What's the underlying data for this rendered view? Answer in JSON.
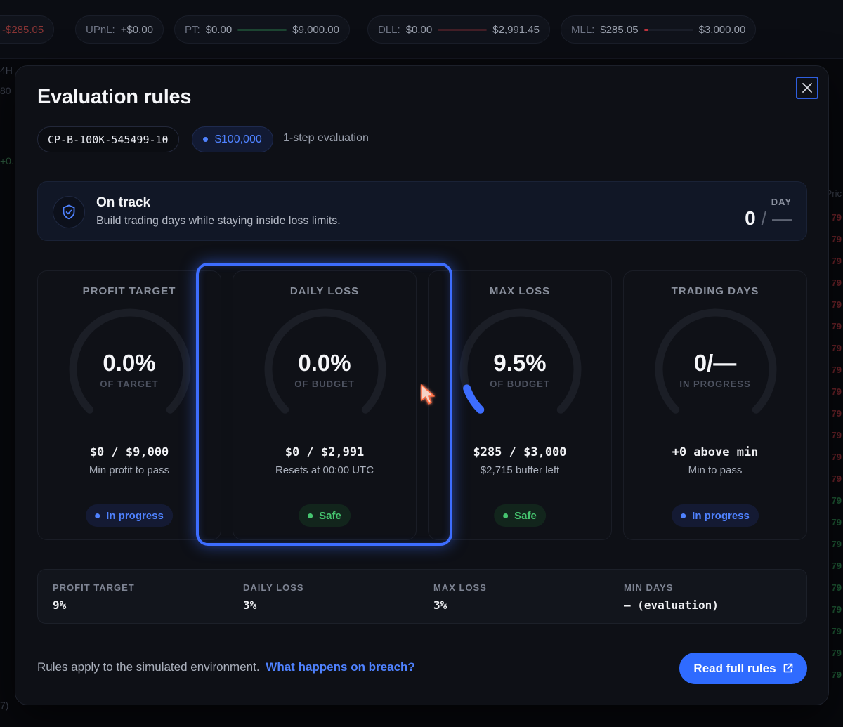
{
  "background": {
    "topbar": [
      {
        "label": "",
        "value": "-$285.05",
        "tone": "neg"
      },
      {
        "label": "UPnL:",
        "value": "+$0.00",
        "tone": "normal"
      },
      {
        "label": "PT:",
        "value": "$0.00",
        "target": "$9,000.00",
        "bar_color": "#1f6b3a"
      },
      {
        "label": "DLL:",
        "value": "$0.00",
        "target": "$2,991.45",
        "bar_color": "#6b1f24"
      },
      {
        "label": "MLL:",
        "value": "$285.05",
        "target": "$3,000.00",
        "bar_color": "#6b1f24"
      }
    ],
    "left_fragments": [
      "4H",
      "80",
      "+0."
    ],
    "bottom_fragment": "7)",
    "right_header": "Pric",
    "right_prices": [
      "79",
      "79",
      "79",
      "79",
      "79",
      "79",
      "79",
      "79",
      "79",
      "79",
      "79",
      "79",
      "79",
      "79",
      "79",
      "79",
      "79",
      "79",
      "79",
      "79",
      "79",
      "79"
    ]
  },
  "modal": {
    "title": "Evaluation rules",
    "close_icon": "close-icon",
    "account_id": "CP-B-100K-545499-10",
    "account_size": "$100,000",
    "evaluation_type": "1-step evaluation",
    "status": {
      "icon": "shield-check-icon",
      "title": "On track",
      "subtitle": "Build trading days while staying inside loss limits.",
      "day_label": "DAY",
      "day_current": "0",
      "day_separator": "/",
      "day_total": "—"
    },
    "cards": [
      {
        "title": "PROFIT TARGET",
        "value": "0.0%",
        "caption": "OF TARGET",
        "amount": "$0 / $9,000",
        "note": "Min profit to pass",
        "badge": "In progress",
        "badge_type": "progress",
        "progress": 0
      },
      {
        "title": "DAILY LOSS",
        "value": "0.0%",
        "caption": "OF BUDGET",
        "amount": "$0 / $2,991",
        "note": "Resets at 00:00 UTC",
        "badge": "Safe",
        "badge_type": "safe",
        "progress": 0
      },
      {
        "title": "MAX LOSS",
        "value": "9.5%",
        "caption": "OF BUDGET",
        "amount": "$285 / $3,000",
        "note": "$2,715 buffer left",
        "badge": "Safe",
        "badge_type": "safe",
        "progress": 0.095
      },
      {
        "title": "TRADING DAYS",
        "value": "0/—",
        "caption": "IN PROGRESS",
        "amount": "+0 above min",
        "note": "Min to pass",
        "badge": "In progress",
        "badge_type": "progress",
        "progress": 0
      }
    ],
    "summary": [
      {
        "label": "PROFIT TARGET",
        "value": "9%"
      },
      {
        "label": "DAILY LOSS",
        "value": "3%"
      },
      {
        "label": "MAX LOSS",
        "value": "3%"
      },
      {
        "label": "MIN DAYS",
        "value": "— (evaluation)"
      }
    ],
    "footer": {
      "text": "Rules apply to the simulated environment.",
      "link": "What happens on breach?",
      "button": "Read full rules",
      "button_icon": "external-link-icon"
    }
  },
  "colors": {
    "accent": "#2f6bff",
    "progress_blue": "#4f82ff",
    "safe_green": "#46c46f",
    "gauge_track": "#1b1e26",
    "gauge_fill": "#3d6dff"
  }
}
